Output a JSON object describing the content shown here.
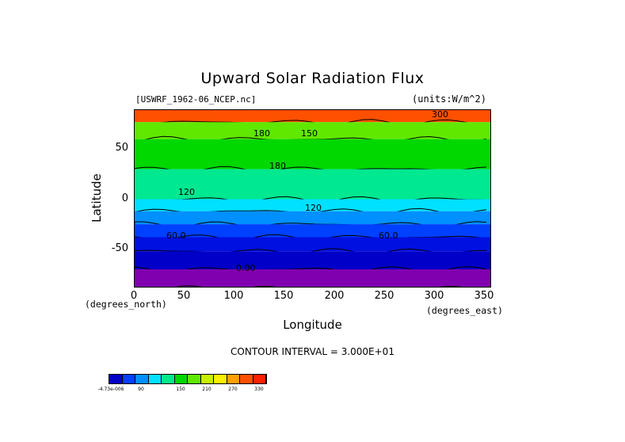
{
  "chart_data": {
    "type": "heatmap",
    "title": "Upward Solar Radiation Flux",
    "file_label": "[USWRF_1962-06_NCEP.nc]",
    "units_label": "(units:W/m^2)",
    "xlabel": "Longitude",
    "ylabel": "Latitude",
    "x_unit_label": "(degrees_east)",
    "y_unit_label": "(degrees_north)",
    "xlim": [
      0,
      357
    ],
    "ylim": [
      -89,
      89
    ],
    "xticks": [
      "0",
      "50",
      "100",
      "150",
      "200",
      "250",
      "300",
      "350"
    ],
    "yticks": [
      "50",
      "0",
      "-50"
    ],
    "contour_interval_text": "CONTOUR INTERVAL = 3.000E+01",
    "contour_labels": [
      "300",
      "180",
      "150",
      "180",
      "120",
      "120",
      "60.0",
      "60.0",
      "0.00"
    ],
    "colorbar": {
      "labels": [
        "-4.73e-006",
        "90",
        "150",
        "210",
        "270",
        "330"
      ],
      "colors": [
        "#0000c8",
        "#0040ff",
        "#0090ff",
        "#00e0ff",
        "#00e890",
        "#00d800",
        "#60e800",
        "#c8f000",
        "#f8f000",
        "#ffa000",
        "#ff5000",
        "#ff2000"
      ]
    },
    "zonal_bands": [
      {
        "lat_top": 89,
        "lat_bottom": 77,
        "value": 300,
        "color": "#ff5000"
      },
      {
        "lat_top": 77,
        "lat_bottom": 60,
        "value": 165,
        "color": "#60e800"
      },
      {
        "lat_top": 60,
        "lat_bottom": 30,
        "value": 165,
        "color": "#00d800"
      },
      {
        "lat_top": 30,
        "lat_bottom": 0,
        "value": 150,
        "color": "#00e890"
      },
      {
        "lat_top": 0,
        "lat_bottom": -12,
        "value": 105,
        "color": "#00e0ff"
      },
      {
        "lat_top": -12,
        "lat_bottom": -25,
        "value": 75,
        "color": "#0090ff"
      },
      {
        "lat_top": -25,
        "lat_bottom": -38,
        "value": 45,
        "color": "#0040ff"
      },
      {
        "lat_top": -38,
        "lat_bottom": -52,
        "value": 20,
        "color": "#0010e0"
      },
      {
        "lat_top": -52,
        "lat_bottom": -70,
        "value": 5,
        "color": "#0000c8"
      },
      {
        "lat_top": -70,
        "lat_bottom": -89,
        "value": 0,
        "color": "#8000b0"
      }
    ]
  }
}
